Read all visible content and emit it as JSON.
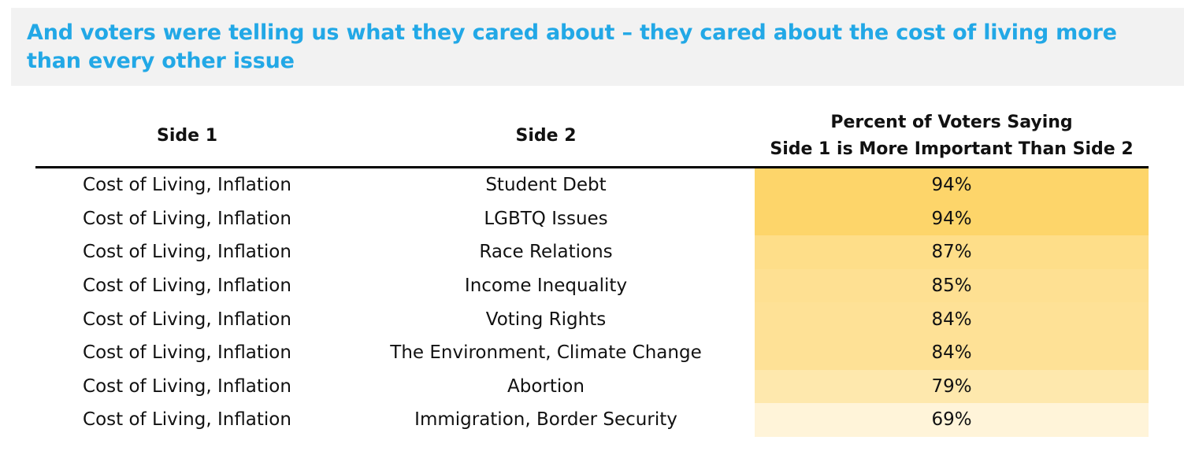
{
  "title": "And voters were telling us what they cared about – they cared about the cost of living more than every other issue",
  "chart_data": {
    "type": "table",
    "columns": [
      "Side 1",
      "Side 2",
      "Percent of Voters Saying Side 1 is More Important Than Side 2"
    ],
    "header_lines": {
      "col3_line1": "Percent of Voters Saying",
      "col3_line2": "Side 1 is More Important Than Side 2"
    },
    "rows": [
      {
        "side1": "Cost of Living, Inflation",
        "side2": "Student Debt",
        "value": 94,
        "label": "94%"
      },
      {
        "side1": "Cost of Living, Inflation",
        "side2": "LGBTQ Issues",
        "value": 94,
        "label": "94%"
      },
      {
        "side1": "Cost of Living, Inflation",
        "side2": "Race Relations",
        "value": 87,
        "label": "87%"
      },
      {
        "side1": "Cost of Living, Inflation",
        "side2": "Income Inequality",
        "value": 85,
        "label": "85%"
      },
      {
        "side1": "Cost of Living, Inflation",
        "side2": "Voting Rights",
        "value": 84,
        "label": "84%"
      },
      {
        "side1": "Cost of Living, Inflation",
        "side2": "The Environment, Climate Change",
        "value": 84,
        "label": "84%"
      },
      {
        "side1": "Cost of Living, Inflation",
        "side2": "Abortion",
        "value": 79,
        "label": "79%"
      },
      {
        "side1": "Cost of Living, Inflation",
        "side2": "Immigration, Border Security",
        "value": 69,
        "label": "69%"
      }
    ],
    "heat_colors": {
      "high": "#fdd56a",
      "low": "#fff4d9"
    }
  },
  "colors": {
    "title_text": "#22a8e6",
    "banner_background": "#f2f2f2",
    "header_rule": "#000000"
  }
}
